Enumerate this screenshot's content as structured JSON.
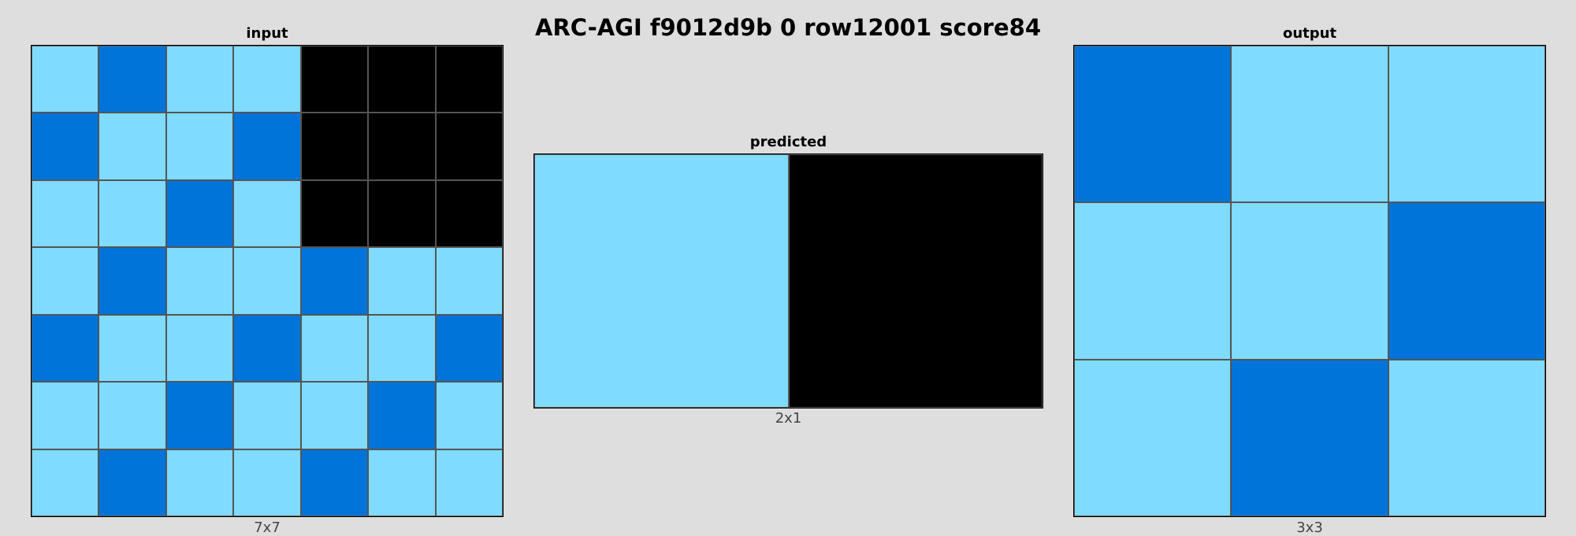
{
  "title": "ARC-AGI f9012d9b 0 row12001 score84",
  "palette": {
    "0": "#000000",
    "1": "#0074d9",
    "8": "#7fdbff"
  },
  "panels": {
    "input": {
      "title": "input",
      "dims": "7x7",
      "grid": [
        [
          8,
          1,
          8,
          8,
          0,
          0,
          0
        ],
        [
          1,
          8,
          8,
          1,
          0,
          0,
          0
        ],
        [
          8,
          8,
          1,
          8,
          0,
          0,
          0
        ],
        [
          8,
          1,
          8,
          8,
          1,
          8,
          8
        ],
        [
          1,
          8,
          8,
          1,
          8,
          8,
          1
        ],
        [
          8,
          8,
          1,
          8,
          8,
          1,
          8
        ],
        [
          8,
          1,
          8,
          8,
          1,
          8,
          8
        ]
      ]
    },
    "predicted": {
      "title": "predicted",
      "dims": "2x1",
      "grid": [
        [
          8,
          0
        ]
      ]
    },
    "output": {
      "title": "output",
      "dims": "3x3",
      "grid": [
        [
          1,
          8,
          8
        ],
        [
          8,
          8,
          1
        ],
        [
          8,
          1,
          8
        ]
      ]
    }
  }
}
